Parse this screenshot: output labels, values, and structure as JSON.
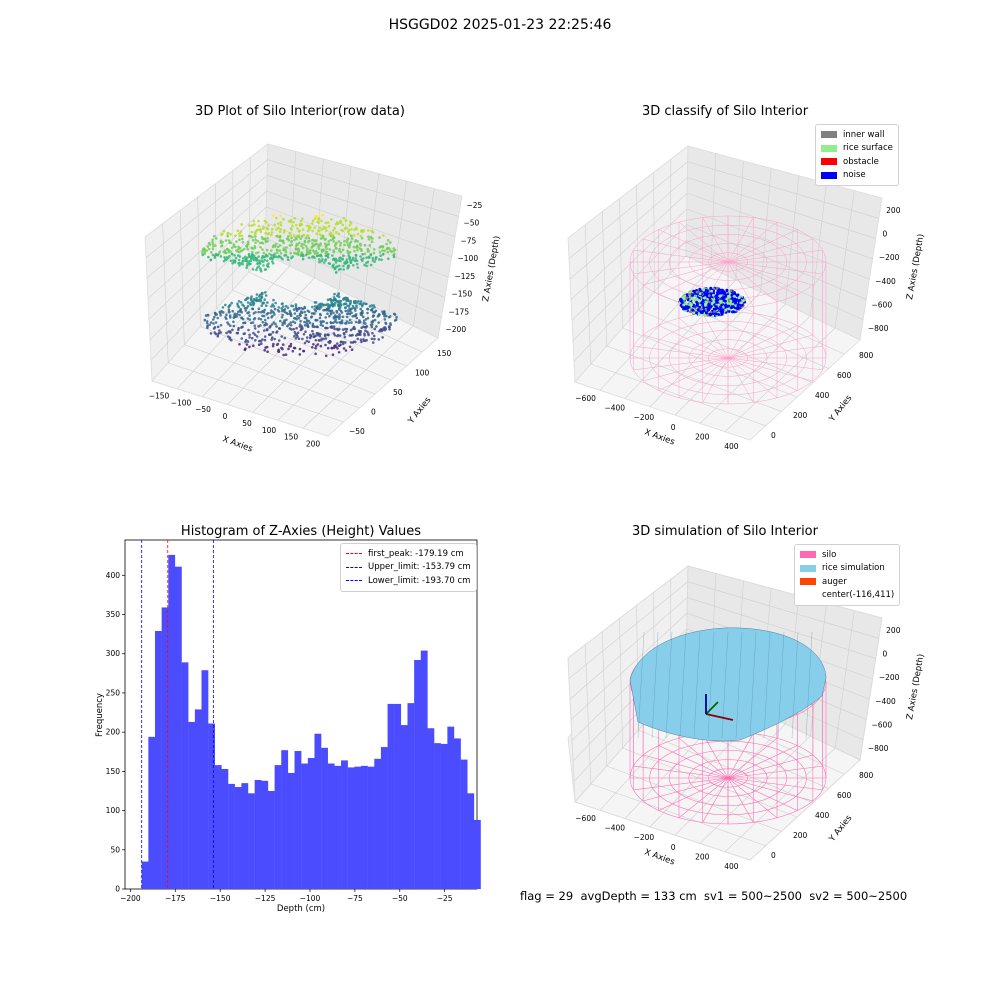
{
  "figure": {
    "suptitle": "HSGGD02 2025-01-23 22:25:46",
    "footer": "flag = 29  avgDepth = 133 cm  sv1 = 500~2500  sv2 = 500~2500"
  },
  "panels": {
    "raw": {
      "title": "3D Plot of Silo Interior(row data)",
      "xlabel": "X Axies",
      "ylabel": "Y Axies",
      "zlabel": "Z Axies (Depth)",
      "xticks": [
        "−150",
        "−100",
        "−50",
        "0",
        "50",
        "100",
        "150",
        "200"
      ],
      "yticks": [
        "−50",
        "0",
        "50",
        "100",
        "150"
      ],
      "zticks": [
        "−25",
        "−50",
        "−75",
        "−100",
        "−125",
        "−150",
        "−175",
        "−200"
      ]
    },
    "classify": {
      "title": "3D classify of Silo Interior",
      "xlabel": "X Axies",
      "ylabel": "Y Axies",
      "zlabel": "Z Axies (Depth)",
      "xticks": [
        "−600",
        "−400",
        "−200",
        "0",
        "200",
        "400"
      ],
      "yticks": [
        "0",
        "200",
        "400",
        "600",
        "800"
      ],
      "zticks": [
        "200",
        "0",
        "−200",
        "−400",
        "−600",
        "−800"
      ],
      "legend": [
        {
          "label": "inner wall",
          "color": "#808080"
        },
        {
          "label": "rice surface",
          "color": "#90ee90"
        },
        {
          "label": "obstacle",
          "color": "#ff0000"
        },
        {
          "label": "noise",
          "color": "#0000ff"
        }
      ]
    },
    "simulation": {
      "title": "3D simulation of Silo Interior",
      "xlabel": "X Axies",
      "ylabel": "Y Axies",
      "zlabel": "Z Axies (Depth)",
      "xticks": [
        "−600",
        "−400",
        "−200",
        "0",
        "200",
        "400"
      ],
      "yticks": [
        "0",
        "200",
        "400",
        "600",
        "800"
      ],
      "zticks": [
        "200",
        "0",
        "−200",
        "−400",
        "−600",
        "−800"
      ],
      "legend": [
        {
          "label": "silo",
          "color": "#ff69b4"
        },
        {
          "label": "rice simulation",
          "color": "#87ceeb"
        },
        {
          "label": "auger",
          "color": "#ff4500"
        },
        {
          "label": "center(-116,411)",
          "color": ""
        }
      ]
    }
  },
  "chart_data": {
    "type": "bar",
    "title": "Histogram of Z-Axies (Height) Values",
    "xlabel": "Depth (cm)",
    "ylabel": "Frequency",
    "xlim": [
      -203,
      -7
    ],
    "ylim": [
      0,
      445
    ],
    "xticks": [
      -200,
      -175,
      -150,
      -125,
      -100,
      -75,
      -50,
      -25
    ],
    "yticks": [
      0,
      50,
      100,
      150,
      200,
      250,
      300,
      350,
      400
    ],
    "bin_width": 3.7,
    "bin_start": -193.7,
    "values": [
      35,
      194,
      329,
      359,
      426,
      411,
      289,
      213,
      229,
      279,
      211,
      158,
      153,
      134,
      130,
      135,
      122,
      139,
      138,
      125,
      158,
      177,
      148,
      176,
      160,
      167,
      198,
      180,
      160,
      157,
      164,
      155,
      156,
      157,
      156,
      166,
      181,
      236,
      236,
      209,
      237,
      292,
      304,
      205,
      186,
      185,
      207,
      192,
      165,
      122,
      88
    ],
    "lines": [
      {
        "name": "first_peak: -179.19 cm",
        "x": -179.19,
        "color": "#ff0000"
      },
      {
        "name": "Upper_limit: -153.79 cm",
        "x": -153.79,
        "color": "#0000ff"
      },
      {
        "name": "Lower_limit: -193.70 cm",
        "x": -193.7,
        "color": "#0000ff"
      }
    ],
    "bar_color": "#4c4cff"
  }
}
